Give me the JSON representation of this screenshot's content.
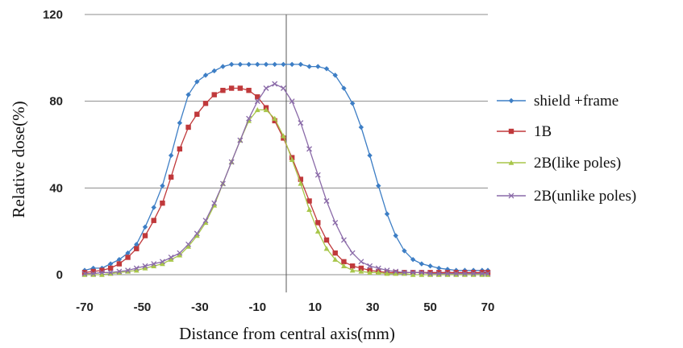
{
  "chart_data": {
    "type": "line",
    "title": "",
    "xlabel": "Distance from central axis(mm)",
    "ylabel": "Relative dose(%)",
    "xlim": [
      -70,
      70
    ],
    "ylim": [
      0,
      120
    ],
    "x_ticks": [
      "-70",
      "-50",
      "-30",
      "-10",
      "10",
      "30",
      "50",
      "70"
    ],
    "y_ticks": [
      "0",
      "40",
      "80",
      "120"
    ],
    "grid": "horizontal gridlines at 0, 40, 80, 120; vertical reference line at x = 0",
    "legend_position": "right",
    "series": [
      {
        "name": "shield +frame",
        "color": "#3d7ec5",
        "marker": "diamond",
        "x": [
          -70,
          -67,
          -64,
          -61,
          -58,
          -55,
          -52,
          -49,
          -46,
          -43,
          -40,
          -37,
          -34,
          -31,
          -28,
          -25,
          -22,
          -19,
          -16,
          -13,
          -10,
          -7,
          -4,
          -1,
          2,
          5,
          8,
          11,
          14,
          17,
          20,
          23,
          26,
          29,
          32,
          35,
          38,
          41,
          44,
          47,
          50,
          53,
          56,
          59,
          62,
          65,
          68,
          70
        ],
        "y": [
          2,
          3,
          3,
          5,
          7,
          10,
          14,
          22,
          31,
          41,
          55,
          70,
          83,
          89,
          92,
          94,
          96,
          97,
          97,
          97,
          97,
          97,
          97,
          97,
          97,
          97,
          96,
          96,
          95,
          92,
          86,
          79,
          68,
          55,
          41,
          28,
          18,
          11,
          7,
          5,
          4,
          3,
          2.5,
          2,
          2,
          2,
          2,
          2
        ]
      },
      {
        "name": "1B",
        "color": "#c0393b",
        "marker": "square",
        "x": [
          -70,
          -67,
          -64,
          -61,
          -58,
          -55,
          -52,
          -49,
          -46,
          -43,
          -40,
          -37,
          -34,
          -31,
          -28,
          -25,
          -22,
          -19,
          -16,
          -13,
          -10,
          -7,
          -4,
          -1,
          2,
          5,
          8,
          11,
          14,
          17,
          20,
          23,
          26,
          29,
          32,
          35,
          38,
          41,
          44,
          47,
          50,
          53,
          56,
          59,
          62,
          65,
          68,
          70
        ],
        "y": [
          1,
          1.5,
          2,
          3,
          5,
          8,
          12,
          18,
          25,
          33,
          45,
          58,
          68,
          74,
          79,
          83,
          85,
          86,
          86,
          85,
          82,
          77,
          71,
          63,
          54,
          44,
          34,
          24,
          16,
          10,
          6,
          4,
          3,
          2,
          1.5,
          1,
          1,
          1,
          1,
          1,
          1,
          1,
          1,
          1,
          1,
          1,
          1,
          1
        ]
      },
      {
        "name": "2B(like poles)",
        "color": "#a8c64a",
        "marker": "triangle",
        "x": [
          -70,
          -67,
          -64,
          -61,
          -58,
          -55,
          -52,
          -49,
          -46,
          -43,
          -40,
          -37,
          -34,
          -31,
          -28,
          -25,
          -22,
          -19,
          -16,
          -13,
          -10,
          -7,
          -4,
          -1,
          2,
          5,
          8,
          11,
          14,
          17,
          20,
          23,
          26,
          29,
          32,
          35,
          38,
          41,
          44,
          47,
          50,
          53,
          56,
          59,
          62,
          65,
          68,
          70
        ],
        "y": [
          0,
          0,
          0,
          0.5,
          1,
          1.5,
          2,
          3,
          4,
          5,
          7,
          9,
          13,
          18,
          24,
          32,
          42,
          52,
          62,
          71,
          76,
          76,
          72,
          64,
          53,
          42,
          30,
          20,
          12,
          7,
          4,
          2,
          1.5,
          1,
          1,
          0.5,
          0.5,
          0.5,
          0,
          0,
          0,
          0,
          0,
          0,
          0,
          0,
          0,
          0
        ]
      },
      {
        "name": "2B(unlike poles)",
        "color": "#8a6aa8",
        "marker": "x",
        "x": [
          -70,
          -67,
          -64,
          -61,
          -58,
          -55,
          -52,
          -49,
          -46,
          -43,
          -40,
          -37,
          -34,
          -31,
          -28,
          -25,
          -22,
          -19,
          -16,
          -13,
          -10,
          -7,
          -4,
          -1,
          2,
          5,
          8,
          11,
          14,
          17,
          20,
          23,
          26,
          29,
          32,
          35,
          38,
          41,
          44,
          47,
          50,
          53,
          56,
          59,
          62,
          65,
          68,
          70
        ],
        "y": [
          0.5,
          0.5,
          1,
          1,
          1.5,
          2,
          3,
          4,
          5,
          6,
          8,
          10,
          14,
          19,
          25,
          33,
          42,
          52,
          62,
          72,
          80,
          86,
          88,
          86,
          80,
          70,
          58,
          46,
          34,
          24,
          16,
          10,
          6,
          4,
          3,
          2,
          1.5,
          1,
          1,
          1,
          0.5,
          0.5,
          0.5,
          0.5,
          0.5,
          0.5,
          0.5,
          0.5
        ]
      }
    ]
  }
}
